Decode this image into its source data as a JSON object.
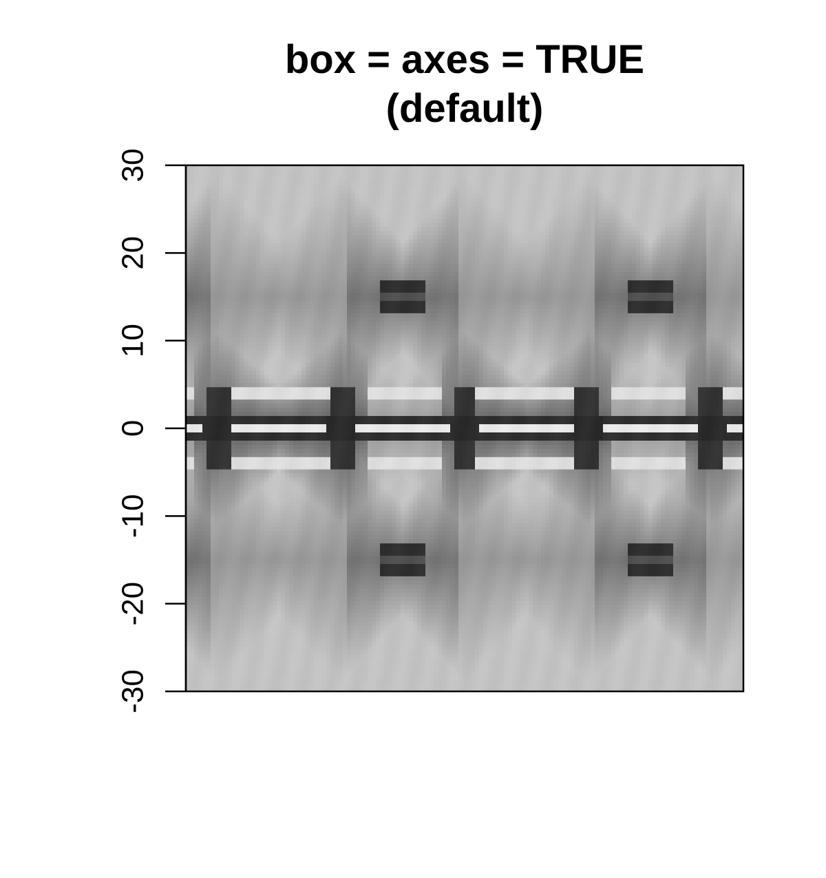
{
  "chart_data": {
    "type": "heatmap",
    "title_lines": [
      "box = axes = TRUE",
      "(default)"
    ],
    "xlabel": "",
    "ylabel": "",
    "ylim": [
      -30,
      30
    ],
    "y_ticks": [
      -30,
      -20,
      -10,
      0,
      10,
      20,
      30
    ],
    "y_tick_labels": [
      "-30",
      "-20",
      "-10",
      "0",
      "10",
      "20",
      "30"
    ],
    "x_axis_shown": false,
    "box": true,
    "grid": false,
    "legend": "none",
    "colormap": "grayscale",
    "colors": {
      "background": "#ffffff",
      "axis": "#000000",
      "low": "#141414",
      "high": "#f4f4f4"
    },
    "pattern": {
      "description_free": true,
      "period_fraction": 0.444,
      "bright_band_rows_y": [
        0
      ],
      "dark_bar_rows_y": [
        15,
        -15
      ]
    }
  }
}
